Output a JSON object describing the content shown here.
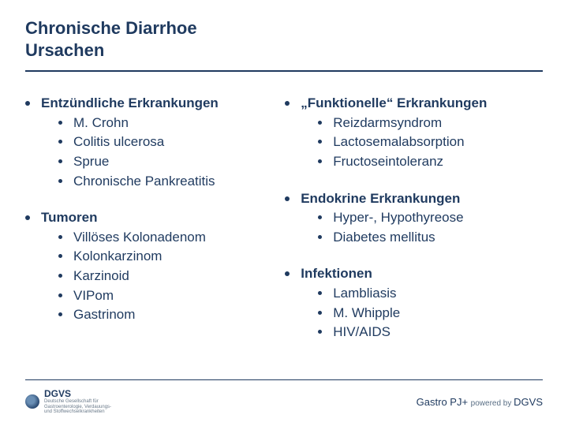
{
  "colors": {
    "text": "#1f3a5f",
    "rule": "#1f3a5f",
    "background": "#ffffff"
  },
  "title_line1": "Chronische Diarrhoe",
  "title_line2": "Ursachen",
  "left": {
    "g1": {
      "head": "Entzündliche Erkrankungen",
      "i1": "M. Crohn",
      "i2": "Colitis ulcerosa",
      "i3": "Sprue",
      "i4": "Chronische Pankreatitis"
    },
    "g2": {
      "head": "Tumoren",
      "i1": "Villöses Kolonadenom",
      "i2": "Kolonkarzinom",
      "i3": "Karzinoid",
      "i4": "VIPom",
      "i5": "Gastrinom"
    }
  },
  "right": {
    "g1": {
      "head": "„Funktionelle“ Erkrankungen",
      "i1": "Reizdarmsyndrom",
      "i2": "Lactosemalabsorption",
      "i3": "Fructoseintoleranz"
    },
    "g2": {
      "head": "Endokrine Erkrankungen",
      "i1": "Hyper-, Hypothyreose",
      "i2": "Diabetes mellitus"
    },
    "g3": {
      "head": "Infektionen",
      "i1": "Lambliasis",
      "i2": "M. Whipple",
      "i3": "HIV/AIDS"
    }
  },
  "footer": {
    "logo_text": "DGVS",
    "logo_sub": "Deutsche Gesellschaft für Gastroenterologie, Verdauungs- und Stoffwechselkrankheiten",
    "right_main": "Gastro PJ+ ",
    "right_pow": "powered by ",
    "right_org": "DGVS"
  }
}
